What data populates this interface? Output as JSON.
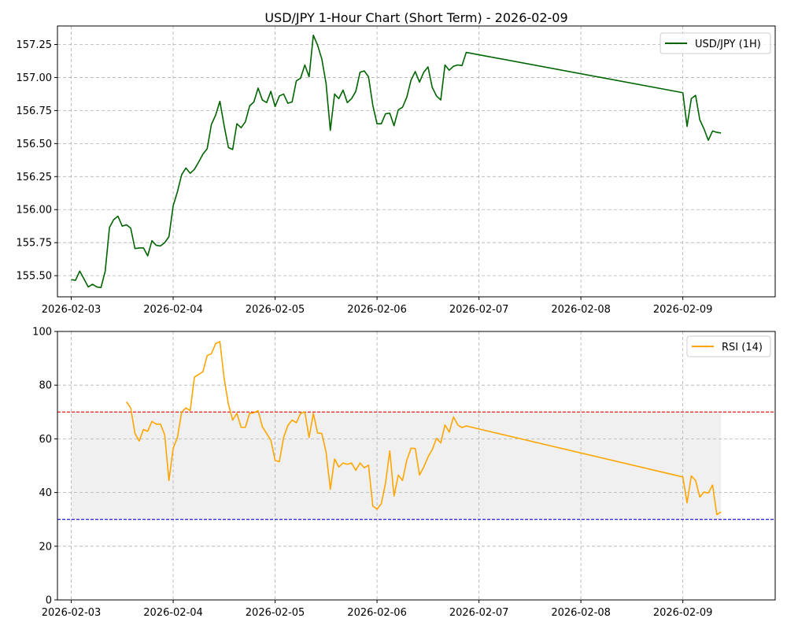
{
  "chart_data": [
    {
      "type": "line",
      "title": "USD/JPY 1-Hour Chart (Short Term) - 2026-02-09",
      "xlabel": "",
      "ylabel": "",
      "x_range": [
        "2026-02-02T20:45",
        "2026-02-09T21:45"
      ],
      "ylim": [
        155.34,
        157.39
      ],
      "x_ticks": [
        "2026-02-03",
        "2026-02-04",
        "2026-02-05",
        "2026-02-06",
        "2026-02-07",
        "2026-02-08",
        "2026-02-09"
      ],
      "y_ticks": [
        "155.50",
        "155.75",
        "156.00",
        "156.25",
        "156.50",
        "156.75",
        "157.00",
        "157.25"
      ],
      "grid": true,
      "legend_position": "top-right",
      "series": [
        {
          "name": "USD/JPY (1H)",
          "color": "#006400",
          "points": [
            [
              "2026-02-03T00:00",
              155.47
            ],
            [
              "2026-02-03T01:00",
              155.465
            ],
            [
              "2026-02-03T02:00",
              155.535
            ],
            [
              "2026-02-03T03:00",
              155.475
            ],
            [
              "2026-02-03T04:00",
              155.415
            ],
            [
              "2026-02-03T05:00",
              155.435
            ],
            [
              "2026-02-03T06:00",
              155.415
            ],
            [
              "2026-02-03T07:00",
              155.41
            ],
            [
              "2026-02-03T08:00",
              155.535
            ],
            [
              "2026-02-03T09:00",
              155.865
            ],
            [
              "2026-02-03T10:00",
              155.925
            ],
            [
              "2026-02-03T11:00",
              155.95
            ],
            [
              "2026-02-03T12:00",
              155.875
            ],
            [
              "2026-02-03T13:00",
              155.885
            ],
            [
              "2026-02-03T14:00",
              155.86
            ],
            [
              "2026-02-03T15:00",
              155.705
            ],
            [
              "2026-02-03T16:00",
              155.71
            ],
            [
              "2026-02-03T17:00",
              155.71
            ],
            [
              "2026-02-03T18:00",
              155.65
            ],
            [
              "2026-02-03T19:00",
              155.765
            ],
            [
              "2026-02-03T20:00",
              155.73
            ],
            [
              "2026-02-03T21:00",
              155.725
            ],
            [
              "2026-02-03T22:00",
              155.75
            ],
            [
              "2026-02-03T23:00",
              155.795
            ],
            [
              "2026-02-04T00:00",
              156.03
            ],
            [
              "2026-02-04T01:00",
              156.135
            ],
            [
              "2026-02-04T02:00",
              156.265
            ],
            [
              "2026-02-04T03:00",
              156.315
            ],
            [
              "2026-02-04T04:00",
              156.275
            ],
            [
              "2026-02-04T05:00",
              156.305
            ],
            [
              "2026-02-04T06:00",
              156.36
            ],
            [
              "2026-02-04T07:00",
              156.42
            ],
            [
              "2026-02-04T08:00",
              156.46
            ],
            [
              "2026-02-04T09:00",
              156.645
            ],
            [
              "2026-02-04T10:00",
              156.715
            ],
            [
              "2026-02-04T11:00",
              156.82
            ],
            [
              "2026-02-04T12:00",
              156.635
            ],
            [
              "2026-02-04T13:00",
              156.47
            ],
            [
              "2026-02-04T14:00",
              156.455
            ],
            [
              "2026-02-04T15:00",
              156.65
            ],
            [
              "2026-02-04T16:00",
              156.62
            ],
            [
              "2026-02-04T17:00",
              156.665
            ],
            [
              "2026-02-04T18:00",
              156.785
            ],
            [
              "2026-02-04T19:00",
              156.815
            ],
            [
              "2026-02-04T20:00",
              156.92
            ],
            [
              "2026-02-04T21:00",
              156.83
            ],
            [
              "2026-02-04T22:00",
              156.81
            ],
            [
              "2026-02-04T23:00",
              156.895
            ],
            [
              "2026-02-05T00:00",
              156.78
            ],
            [
              "2026-02-05T01:00",
              156.86
            ],
            [
              "2026-02-05T02:00",
              156.875
            ],
            [
              "2026-02-05T03:00",
              156.805
            ],
            [
              "2026-02-05T04:00",
              156.815
            ],
            [
              "2026-02-05T05:00",
              156.975
            ],
            [
              "2026-02-05T06:00",
              156.995
            ],
            [
              "2026-02-05T07:00",
              157.095
            ],
            [
              "2026-02-05T08:00",
              157.005
            ],
            [
              "2026-02-05T09:00",
              157.32
            ],
            [
              "2026-02-05T10:00",
              157.245
            ],
            [
              "2026-02-05T11:00",
              157.14
            ],
            [
              "2026-02-05T12:00",
              156.955
            ],
            [
              "2026-02-05T13:00",
              156.6
            ],
            [
              "2026-02-05T14:00",
              156.875
            ],
            [
              "2026-02-05T15:00",
              156.84
            ],
            [
              "2026-02-05T16:00",
              156.905
            ],
            [
              "2026-02-05T17:00",
              156.81
            ],
            [
              "2026-02-05T18:00",
              156.84
            ],
            [
              "2026-02-05T19:00",
              156.895
            ],
            [
              "2026-02-05T20:00",
              157.04
            ],
            [
              "2026-02-05T21:00",
              157.05
            ],
            [
              "2026-02-05T22:00",
              157.005
            ],
            [
              "2026-02-05T23:00",
              156.79
            ],
            [
              "2026-02-06T00:00",
              156.65
            ],
            [
              "2026-02-06T01:00",
              156.65
            ],
            [
              "2026-02-06T02:00",
              156.725
            ],
            [
              "2026-02-06T03:00",
              156.73
            ],
            [
              "2026-02-06T04:00",
              156.635
            ],
            [
              "2026-02-06T05:00",
              156.755
            ],
            [
              "2026-02-06T06:00",
              156.775
            ],
            [
              "2026-02-06T07:00",
              156.85
            ],
            [
              "2026-02-06T08:00",
              156.98
            ],
            [
              "2026-02-06T09:00",
              157.045
            ],
            [
              "2026-02-06T10:00",
              156.965
            ],
            [
              "2026-02-06T11:00",
              157.04
            ],
            [
              "2026-02-06T12:00",
              157.08
            ],
            [
              "2026-02-06T13:00",
              156.925
            ],
            [
              "2026-02-06T14:00",
              156.86
            ],
            [
              "2026-02-06T15:00",
              156.83
            ],
            [
              "2026-02-06T16:00",
              157.095
            ],
            [
              "2026-02-06T17:00",
              157.055
            ],
            [
              "2026-02-06T18:00",
              157.085
            ],
            [
              "2026-02-06T19:00",
              157.095
            ],
            [
              "2026-02-06T20:00",
              157.09
            ],
            [
              "2026-02-06T21:00",
              157.19
            ],
            [
              "2026-02-09T00:00",
              156.885
            ],
            [
              "2026-02-09T01:00",
              156.63
            ],
            [
              "2026-02-09T02:00",
              156.84
            ],
            [
              "2026-02-09T03:00",
              156.865
            ],
            [
              "2026-02-09T04:00",
              156.68
            ],
            [
              "2026-02-09T05:00",
              156.61
            ],
            [
              "2026-02-09T06:00",
              156.525
            ],
            [
              "2026-02-09T07:00",
              156.595
            ],
            [
              "2026-02-09T08:00",
              156.585
            ],
            [
              "2026-02-09T09:00",
              156.58
            ]
          ]
        }
      ]
    },
    {
      "type": "line",
      "title": "",
      "xlabel": "",
      "ylabel": "",
      "x_range": [
        "2026-02-02T20:45",
        "2026-02-09T21:45"
      ],
      "ylim": [
        0,
        100
      ],
      "x_ticks": [
        "2026-02-03",
        "2026-02-04",
        "2026-02-05",
        "2026-02-06",
        "2026-02-07",
        "2026-02-08",
        "2026-02-09"
      ],
      "y_ticks": [
        "0",
        "20",
        "40",
        "60",
        "80",
        "100"
      ],
      "grid": true,
      "legend_position": "top-right",
      "reference_lines": [
        {
          "value": 70,
          "color": "#ff0000",
          "style": "dashed"
        },
        {
          "value": 30,
          "color": "#0000ff",
          "style": "dashed"
        }
      ],
      "shaded_band": {
        "from": 30,
        "to": 70,
        "x_start": "2026-02-03T00:00",
        "x_end": "2026-02-09T09:00",
        "color": "#f0f0f0"
      },
      "series": [
        {
          "name": "RSI (14)",
          "color": "#ffa500",
          "points": [
            [
              "2026-02-03T13:00",
              73.8
            ],
            [
              "2026-02-03T14:00",
              71.5
            ],
            [
              "2026-02-03T15:00",
              62
            ],
            [
              "2026-02-03T16:00",
              59.2
            ],
            [
              "2026-02-03T17:00",
              63.5
            ],
            [
              "2026-02-03T18:00",
              62.8
            ],
            [
              "2026-02-03T19:00",
              66.5
            ],
            [
              "2026-02-03T20:00",
              65.5
            ],
            [
              "2026-02-03T21:00",
              65.5
            ],
            [
              "2026-02-03T22:00",
              61.5
            ],
            [
              "2026-02-03T23:00",
              44.5
            ],
            [
              "2026-02-04T00:00",
              56.5
            ],
            [
              "2026-02-04T01:00",
              60.5
            ],
            [
              "2026-02-04T02:00",
              70
            ],
            [
              "2026-02-04T03:00",
              71.5
            ],
            [
              "2026-02-04T04:00",
              70.5
            ],
            [
              "2026-02-04T05:00",
              83
            ],
            [
              "2026-02-04T06:00",
              84
            ],
            [
              "2026-02-04T07:00",
              85
            ],
            [
              "2026-02-04T08:00",
              91
            ],
            [
              "2026-02-04T09:00",
              91.7
            ],
            [
              "2026-02-04T10:00",
              95.5
            ],
            [
              "2026-02-04T11:00",
              96.2
            ],
            [
              "2026-02-04T12:00",
              82.5
            ],
            [
              "2026-02-04T13:00",
              73
            ],
            [
              "2026-02-04T14:00",
              67
            ],
            [
              "2026-02-04T15:00",
              69.5
            ],
            [
              "2026-02-04T16:00",
              64.3
            ],
            [
              "2026-02-04T17:00",
              64.3
            ],
            [
              "2026-02-04T18:00",
              69.5
            ],
            [
              "2026-02-04T19:00",
              69.7
            ],
            [
              "2026-02-04T20:00",
              70.5
            ],
            [
              "2026-02-04T21:00",
              64.5
            ],
            [
              "2026-02-04T22:00",
              62
            ],
            [
              "2026-02-04T23:00",
              59.5
            ],
            [
              "2026-02-05T00:00",
              52
            ],
            [
              "2026-02-05T01:00",
              51.5
            ],
            [
              "2026-02-05T02:00",
              60.5
            ],
            [
              "2026-02-05T03:00",
              65
            ],
            [
              "2026-02-05T04:00",
              67
            ],
            [
              "2026-02-05T05:00",
              66
            ],
            [
              "2026-02-05T06:00",
              69.5
            ],
            [
              "2026-02-05T07:00",
              70
            ],
            [
              "2026-02-05T08:00",
              60.5
            ],
            [
              "2026-02-05T09:00",
              69.5
            ],
            [
              "2026-02-05T10:00",
              62.2
            ],
            [
              "2026-02-05T11:00",
              62
            ],
            [
              "2026-02-05T12:00",
              55
            ],
            [
              "2026-02-05T13:00",
              41.2
            ],
            [
              "2026-02-05T14:00",
              52.5
            ],
            [
              "2026-02-05T15:00",
              49.5
            ],
            [
              "2026-02-05T16:00",
              51
            ],
            [
              "2026-02-05T17:00",
              50.5
            ],
            [
              "2026-02-05T18:00",
              51
            ],
            [
              "2026-02-05T19:00",
              48.3
            ],
            [
              "2026-02-05T20:00",
              51
            ],
            [
              "2026-02-05T21:00",
              49.2
            ],
            [
              "2026-02-05T22:00",
              50.2
            ],
            [
              "2026-02-05T23:00",
              35
            ],
            [
              "2026-02-06T00:00",
              33.8
            ],
            [
              "2026-02-06T01:00",
              35.8
            ],
            [
              "2026-02-06T02:00",
              43.5
            ],
            [
              "2026-02-06T03:00",
              55.5
            ],
            [
              "2026-02-06T04:00",
              38.7
            ],
            [
              "2026-02-06T05:00",
              46.5
            ],
            [
              "2026-02-06T06:00",
              44.5
            ],
            [
              "2026-02-06T07:00",
              52
            ],
            [
              "2026-02-06T08:00",
              56.5
            ],
            [
              "2026-02-06T09:00",
              56.4
            ],
            [
              "2026-02-06T10:00",
              46.5
            ],
            [
              "2026-02-06T11:00",
              49.5
            ],
            [
              "2026-02-06T12:00",
              53.2
            ],
            [
              "2026-02-06T13:00",
              56
            ],
            [
              "2026-02-06T14:00",
              60.2
            ],
            [
              "2026-02-06T15:00",
              58.5
            ],
            [
              "2026-02-06T16:00",
              65.2
            ],
            [
              "2026-02-06T17:00",
              62.5
            ],
            [
              "2026-02-06T18:00",
              68.2
            ],
            [
              "2026-02-06T19:00",
              65.2
            ],
            [
              "2026-02-06T20:00",
              64.2
            ],
            [
              "2026-02-06T21:00",
              64.8
            ],
            [
              "2026-02-09T00:00",
              45.8
            ],
            [
              "2026-02-09T01:00",
              36.2
            ],
            [
              "2026-02-09T02:00",
              46.2
            ],
            [
              "2026-02-09T03:00",
              44.5
            ],
            [
              "2026-02-09T04:00",
              38.3
            ],
            [
              "2026-02-09T05:00",
              40.2
            ],
            [
              "2026-02-09T06:00",
              39.8
            ],
            [
              "2026-02-09T07:00",
              42.8
            ],
            [
              "2026-02-09T08:00",
              31.8
            ],
            [
              "2026-02-09T09:00",
              32.8
            ]
          ]
        }
      ]
    }
  ]
}
